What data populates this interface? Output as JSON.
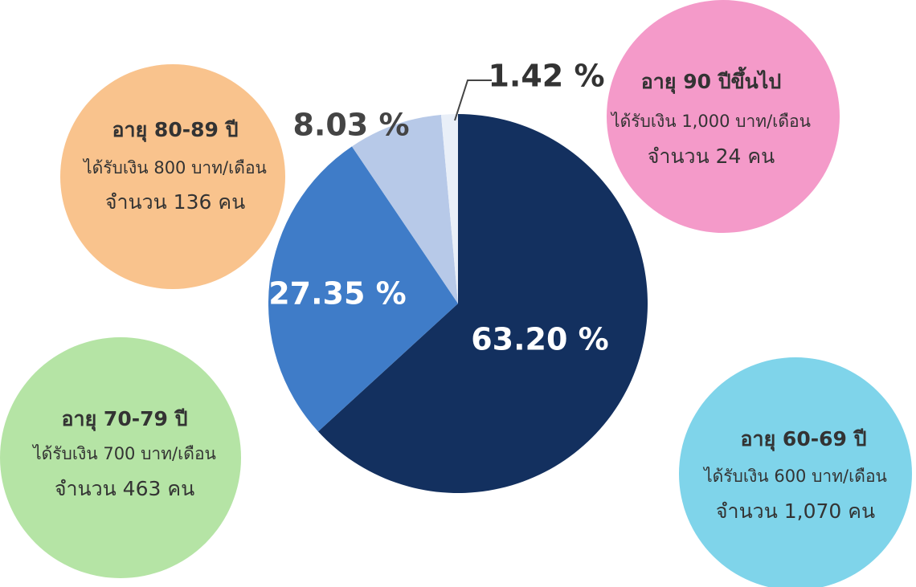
{
  "chart_data": {
    "type": "pie",
    "categories": [
      "อายุ 60-69 ปี",
      "อายุ 70-79 ปี",
      "อายุ 80-89 ปี",
      "อายุ 90 ปีขึ้นไป"
    ],
    "values": [
      63.2,
      27.35,
      8.03,
      1.42
    ],
    "value_labels": [
      "63.20 %",
      "27.35 %",
      "8.03 %",
      "1.42 %"
    ],
    "colors": [
      "#13305f",
      "#3f7cc8",
      "#b7c9e8",
      "#e9eff8"
    ],
    "annotations": [
      {
        "title": "อายุ 60-69 ปี",
        "amount": "ได้รับเงิน 600 บาท/เดือน",
        "count": "จำนวน 1,070 คน"
      },
      {
        "title": "อายุ 70-79 ปี",
        "amount": "ได้รับเงิน 700 บาท/เดือน",
        "count": "จำนวน 463 คน"
      },
      {
        "title": "อายุ 80-89 ปี",
        "amount": "ได้รับเงิน 800 บาท/เดือน",
        "count": "จำนวน 136 คน"
      },
      {
        "title": "อายุ 90 ปีขึ้นไป",
        "amount": "ได้รับเงิน 1,000 บาท/เดือน",
        "count": "จำนวน 24 คน"
      }
    ]
  }
}
